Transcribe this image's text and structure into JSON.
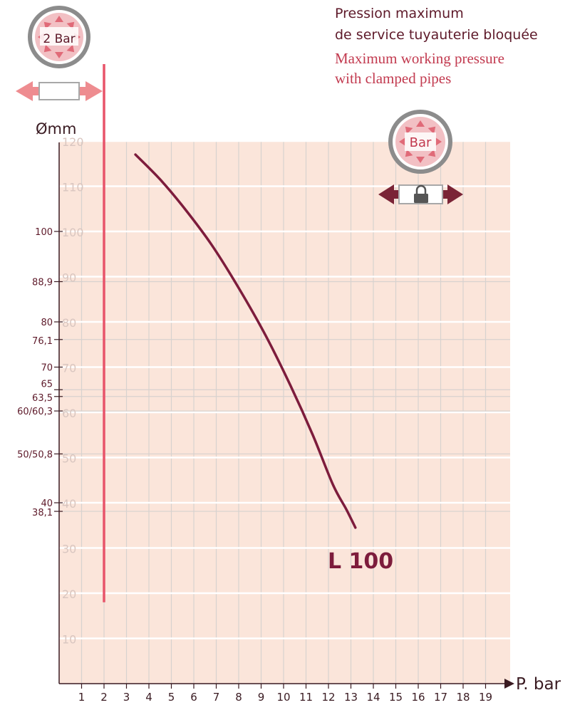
{
  "header": {
    "title_fr_line1": "Pression maximum",
    "title_fr_line2": "de service tuyauterie bloquée",
    "title_en_line1": "Maximum working pressure",
    "title_en_line2": "with clamped pipes"
  },
  "icons": {
    "reference_badge_label": "2 Bar",
    "pressure_badge_label": "Bar"
  },
  "colors": {
    "plot_background": "#fbe5da",
    "grid_line": "#ffffff",
    "curve": "#7d1c3c",
    "reference_line": "#e8546a",
    "axis_text": "#5e1a2a",
    "faint_tick": "#d9c6c0"
  },
  "chart_data": {
    "type": "line",
    "xlabel": "P. bar",
    "ylabel": "Ømm",
    "xlim": [
      0,
      19
    ],
    "ylim": [
      0,
      120
    ],
    "x_ticks": [
      1,
      2,
      3,
      4,
      5,
      6,
      7,
      8,
      9,
      10,
      11,
      12,
      13,
      14,
      15,
      16,
      17,
      18,
      19
    ],
    "y_grid_ticks": [
      10,
      20,
      30,
      40,
      50,
      60,
      70,
      80,
      90,
      100,
      110,
      120
    ],
    "diameter_ticks": [
      {
        "label": "100",
        "value": 100
      },
      {
        "label": "88,9",
        "value": 88.9
      },
      {
        "label": "80",
        "value": 80
      },
      {
        "label": "76,1",
        "value": 76.1
      },
      {
        "label": "70",
        "value": 70
      },
      {
        "label": "65",
        "value": 65
      },
      {
        "label": "63,5",
        "value": 63.5
      },
      {
        "label": "60/60,3",
        "value": 60.3
      },
      {
        "label": "50/50,8",
        "value": 50.8
      },
      {
        "label": "40",
        "value": 40
      },
      {
        "label": "38,1",
        "value": 38.1
      }
    ],
    "reference_line": {
      "x": 2,
      "y_range": [
        18,
        137
      ]
    },
    "series": [
      {
        "name": "L 100",
        "x": [
          3.4,
          4.5,
          5.6,
          6.8,
          8.0,
          9.2,
          10.3,
          11.3,
          12.2,
          12.8,
          13.2
        ],
        "y": [
          117.0,
          111.5,
          105.0,
          97.0,
          87.5,
          77.0,
          66.0,
          55.0,
          44.0,
          38.5,
          34.5
        ]
      }
    ],
    "grid": true
  }
}
